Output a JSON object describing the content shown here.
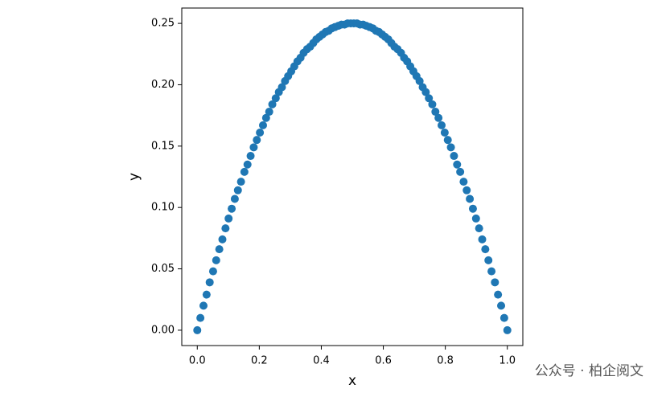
{
  "chart_data": {
    "type": "scatter",
    "xlabel": "x",
    "ylabel": "y",
    "watermark": "公众号 · 柏企阅文",
    "xlim": [
      -0.05,
      1.05
    ],
    "ylim": [
      -0.0125,
      0.2625
    ],
    "xticks": [
      {
        "value": 0,
        "label": "0.0"
      },
      {
        "value": 0.2,
        "label": "0.2"
      },
      {
        "value": 0.4,
        "label": "0.4"
      },
      {
        "value": 0.6,
        "label": "0.6"
      },
      {
        "value": 0.8,
        "label": "0.8"
      },
      {
        "value": 1,
        "label": "1.0"
      }
    ],
    "yticks": [
      {
        "value": 0,
        "label": "0.00"
      },
      {
        "value": 0.05,
        "label": "0.05"
      },
      {
        "value": 0.1,
        "label": "0.10"
      },
      {
        "value": 0.15,
        "label": "0.15"
      },
      {
        "value": 0.2,
        "label": "0.20"
      },
      {
        "value": 0.25,
        "label": "0.25"
      }
    ],
    "color": "#1f77b4",
    "x": [
      0,
      0.01,
      0.02,
      0.03,
      0.04,
      0.051,
      0.061,
      0.071,
      0.081,
      0.091,
      0.101,
      0.111,
      0.121,
      0.131,
      0.141,
      0.152,
      0.162,
      0.172,
      0.182,
      0.192,
      0.202,
      0.212,
      0.222,
      0.232,
      0.242,
      0.253,
      0.263,
      0.273,
      0.283,
      0.293,
      0.303,
      0.313,
      0.323,
      0.333,
      0.343,
      0.354,
      0.364,
      0.374,
      0.384,
      0.394,
      0.404,
      0.414,
      0.424,
      0.434,
      0.444,
      0.455,
      0.465,
      0.475,
      0.485,
      0.495,
      0.505,
      0.515,
      0.525,
      0.535,
      0.545,
      0.556,
      0.566,
      0.576,
      0.586,
      0.596,
      0.606,
      0.616,
      0.626,
      0.636,
      0.646,
      0.657,
      0.667,
      0.677,
      0.687,
      0.697,
      0.707,
      0.717,
      0.727,
      0.737,
      0.747,
      0.758,
      0.768,
      0.778,
      0.788,
      0.798,
      0.808,
      0.818,
      0.828,
      0.838,
      0.848,
      0.859,
      0.869,
      0.879,
      0.889,
      0.899,
      0.909,
      0.919,
      0.929,
      0.939,
      0.949,
      0.96,
      0.97,
      0.98,
      0.99,
      1
    ],
    "values": [
      0,
      0.01,
      0.02,
      0.029,
      0.039,
      0.048,
      0.057,
      0.066,
      0.074,
      0.083,
      0.091,
      0.099,
      0.107,
      0.114,
      0.121,
      0.129,
      0.135,
      0.142,
      0.149,
      0.155,
      0.161,
      0.167,
      0.173,
      0.178,
      0.184,
      0.189,
      0.194,
      0.198,
      0.203,
      0.207,
      0.211,
      0.215,
      0.219,
      0.222,
      0.226,
      0.229,
      0.231,
      0.234,
      0.237,
      0.239,
      0.241,
      0.243,
      0.244,
      0.246,
      0.247,
      0.248,
      0.249,
      0.249,
      0.25,
      0.25,
      0.25,
      0.25,
      0.249,
      0.249,
      0.248,
      0.247,
      0.246,
      0.244,
      0.243,
      0.241,
      0.239,
      0.237,
      0.234,
      0.231,
      0.229,
      0.226,
      0.222,
      0.219,
      0.215,
      0.211,
      0.207,
      0.203,
      0.198,
      0.194,
      0.189,
      0.184,
      0.178,
      0.173,
      0.167,
      0.161,
      0.155,
      0.149,
      0.142,
      0.135,
      0.129,
      0.121,
      0.114,
      0.107,
      0.099,
      0.091,
      0.083,
      0.074,
      0.066,
      0.057,
      0.048,
      0.039,
      0.029,
      0.02,
      0.01,
      0
    ]
  }
}
